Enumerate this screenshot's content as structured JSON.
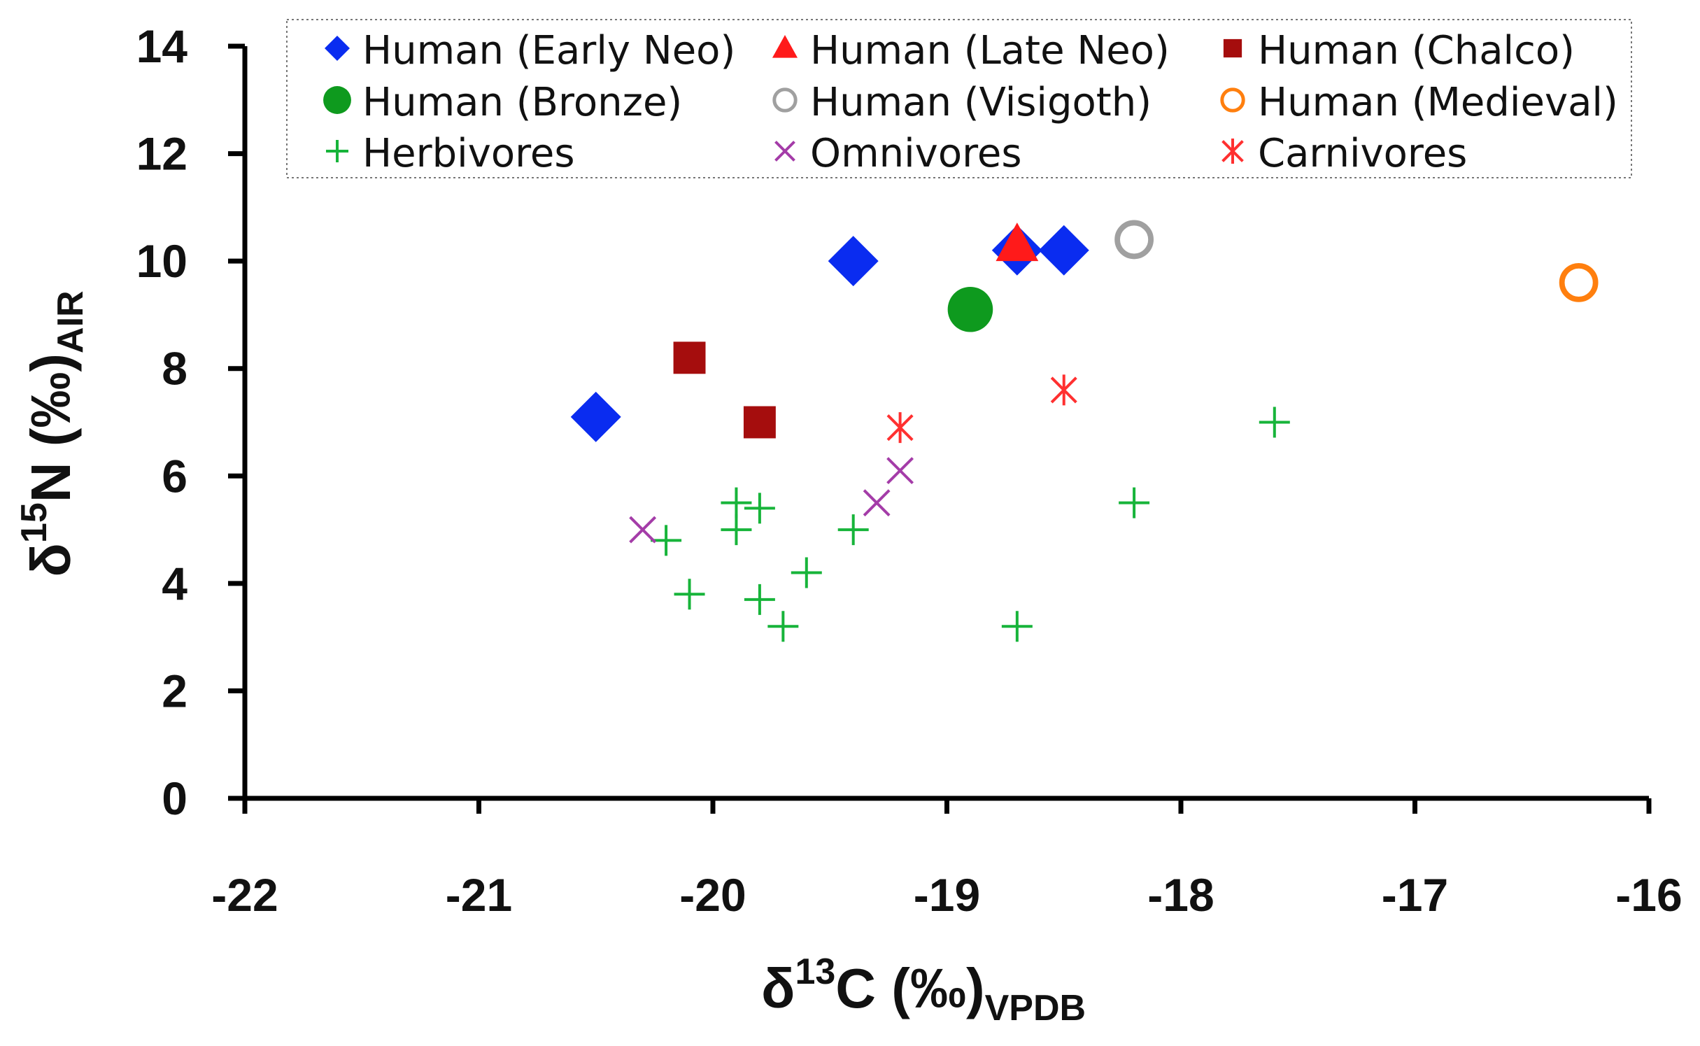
{
  "chart_data": {
    "type": "scatter",
    "title": "",
    "xlabel": {
      "base": "δ",
      "sup": "13",
      "main": "C (‰)",
      "sub": "VPDB"
    },
    "ylabel": {
      "base": "δ",
      "sup": "15",
      "main": "N (‰)",
      "sub": "AIR"
    },
    "xlim": [
      -22,
      -16
    ],
    "ylim": [
      0,
      14
    ],
    "xticks": [
      -22,
      -21,
      -20,
      -19,
      -18,
      -17,
      -16
    ],
    "yticks": [
      0,
      2,
      4,
      6,
      8,
      10,
      12,
      14
    ],
    "grid": false,
    "legend_position": "top",
    "series": [
      {
        "name": "Human (Early Neo)",
        "marker": "diamond",
        "color": "#0a2cf0",
        "points": [
          [
            -20.5,
            7.1
          ],
          [
            -19.4,
            10.0
          ],
          [
            -18.7,
            10.2
          ],
          [
            -18.5,
            10.2
          ]
        ]
      },
      {
        "name": "Human (Late Neo)",
        "marker": "triangle",
        "color": "#ff1a1a",
        "points": [
          [
            -18.7,
            10.3
          ]
        ]
      },
      {
        "name": "Human (Chalco)",
        "marker": "square",
        "color": "#a50d0d",
        "points": [
          [
            -20.1,
            8.2
          ],
          [
            -19.8,
            7.0
          ]
        ]
      },
      {
        "name": "Human (Bronze)",
        "marker": "circle",
        "color": "#0e9a1e",
        "points": [
          [
            -18.9,
            9.1
          ]
        ]
      },
      {
        "name": "Human (Visigoth)",
        "marker": "ring",
        "color": "#a0a0a0",
        "points": [
          [
            -18.2,
            10.4
          ]
        ]
      },
      {
        "name": "Human (Medieval)",
        "marker": "ring",
        "color": "#ff7f0e",
        "points": [
          [
            -16.3,
            9.6
          ]
        ]
      },
      {
        "name": "Herbivores",
        "marker": "plus",
        "color": "#17b43a",
        "points": [
          [
            -20.2,
            4.8
          ],
          [
            -20.1,
            3.8
          ],
          [
            -19.9,
            5.5
          ],
          [
            -19.9,
            5.0
          ],
          [
            -19.8,
            5.4
          ],
          [
            -19.8,
            3.7
          ],
          [
            -19.7,
            3.2
          ],
          [
            -19.6,
            4.2
          ],
          [
            -19.4,
            5.0
          ],
          [
            -18.7,
            3.2
          ],
          [
            -18.2,
            5.5
          ],
          [
            -17.6,
            7.0
          ]
        ]
      },
      {
        "name": "Omnivores",
        "marker": "x",
        "color": "#a43ca8",
        "points": [
          [
            -20.3,
            5.0
          ],
          [
            -19.3,
            5.5
          ],
          [
            -19.2,
            6.1
          ]
        ]
      },
      {
        "name": "Carnivores",
        "marker": "asterisk",
        "color": "#ff3030",
        "points": [
          [
            -19.2,
            6.9
          ],
          [
            -18.5,
            7.6
          ]
        ]
      }
    ]
  }
}
